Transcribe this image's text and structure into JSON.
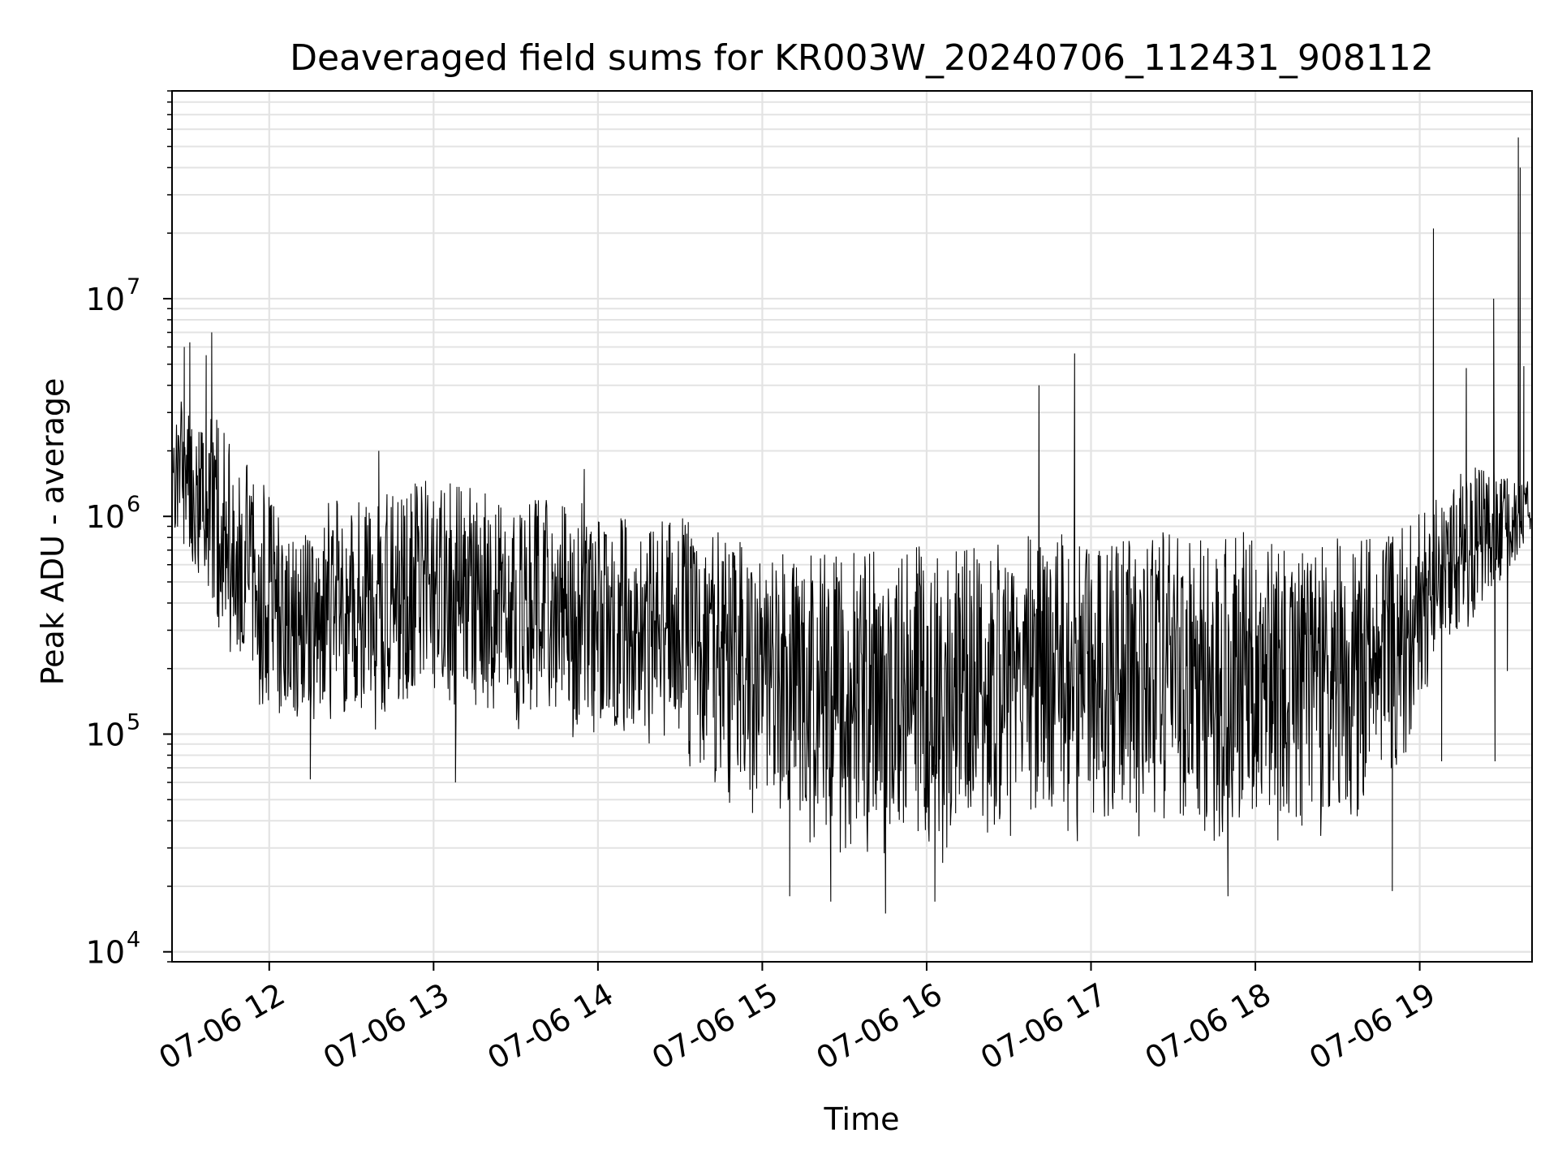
{
  "chart_data": {
    "type": "line",
    "title": "Deaveraged field sums for KR003W_20240706_112431_908112",
    "xlabel": "Time",
    "ylabel": "Peak ADU - average",
    "yscale": "log",
    "xlim": [
      "2024-07-06T11:24:31",
      "2024-07-06T19:41:00"
    ],
    "ylim": [
      9000,
      90000000
    ],
    "grid": true,
    "grid_minor": true,
    "x_ticks": [
      {
        "t": "2024-07-06T12:00:00",
        "label": "07-06 12"
      },
      {
        "t": "2024-07-06T13:00:00",
        "label": "07-06 13"
      },
      {
        "t": "2024-07-06T14:00:00",
        "label": "07-06 14"
      },
      {
        "t": "2024-07-06T15:00:00",
        "label": "07-06 15"
      },
      {
        "t": "2024-07-06T16:00:00",
        "label": "07-06 16"
      },
      {
        "t": "2024-07-06T17:00:00",
        "label": "07-06 17"
      },
      {
        "t": "2024-07-06T18:00:00",
        "label": "07-06 18"
      },
      {
        "t": "2024-07-06T19:00:00",
        "label": "07-06 19"
      }
    ],
    "y_ticks": [
      {
        "v": 10000,
        "base": "10",
        "exp": "4"
      },
      {
        "v": 100000,
        "base": "10",
        "exp": "5"
      },
      {
        "v": 1000000,
        "base": "10",
        "exp": "6"
      },
      {
        "v": 10000000,
        "base": "10",
        "exp": "7"
      }
    ],
    "line_color": "#000000",
    "grid_color": "#e3e3e3",
    "envelope": [
      {
        "t": "2024-07-06T11:25:00",
        "lo": 800000,
        "hi": 4000000
      },
      {
        "t": "2024-07-06T11:40:00",
        "lo": 300000,
        "hi": 3000000
      },
      {
        "t": "2024-07-06T12:00:00",
        "lo": 100000,
        "hi": 1300000
      },
      {
        "t": "2024-07-06T12:30:00",
        "lo": 100000,
        "hi": 1200000
      },
      {
        "t": "2024-07-06T13:00:00",
        "lo": 110000,
        "hi": 1500000
      },
      {
        "t": "2024-07-06T13:30:00",
        "lo": 90000,
        "hi": 1200000
      },
      {
        "t": "2024-07-06T14:00:00",
        "lo": 90000,
        "hi": 1200000
      },
      {
        "t": "2024-07-06T14:30:00",
        "lo": 70000,
        "hi": 1000000
      },
      {
        "t": "2024-07-06T14:50:00",
        "lo": 45000,
        "hi": 800000
      },
      {
        "t": "2024-07-06T15:00:00",
        "lo": 35000,
        "hi": 700000
      },
      {
        "t": "2024-07-06T15:30:00",
        "lo": 25000,
        "hi": 700000
      },
      {
        "t": "2024-07-06T16:00:00",
        "lo": 25000,
        "hi": 750000
      },
      {
        "t": "2024-07-06T16:30:00",
        "lo": 27000,
        "hi": 800000
      },
      {
        "t": "2024-07-06T17:00:00",
        "lo": 30000,
        "hi": 850000
      },
      {
        "t": "2024-07-06T17:30:00",
        "lo": 30000,
        "hi": 850000
      },
      {
        "t": "2024-07-06T18:00:00",
        "lo": 28000,
        "hi": 850000
      },
      {
        "t": "2024-07-06T18:30:00",
        "lo": 30000,
        "hi": 800000
      },
      {
        "t": "2024-07-06T18:55:00",
        "lo": 60000,
        "hi": 900000
      },
      {
        "t": "2024-07-06T19:05:00",
        "lo": 200000,
        "hi": 1200000
      },
      {
        "t": "2024-07-06T19:20:00",
        "lo": 300000,
        "hi": 1800000
      },
      {
        "t": "2024-07-06T19:40:00",
        "lo": 700000,
        "hi": 1500000
      }
    ],
    "spikes": [
      {
        "t": "2024-07-06T11:29:00",
        "y": 6000000
      },
      {
        "t": "2024-07-06T11:31:00",
        "y": 6300000
      },
      {
        "t": "2024-07-06T11:37:00",
        "y": 5500000
      },
      {
        "t": "2024-07-06T11:39:00",
        "y": 7000000
      },
      {
        "t": "2024-07-06T12:15:00",
        "y": 62000
      },
      {
        "t": "2024-07-06T12:40:00",
        "y": 2000000
      },
      {
        "t": "2024-07-06T13:08:00",
        "y": 60000
      },
      {
        "t": "2024-07-06T13:55:00",
        "y": 1650000
      },
      {
        "t": "2024-07-06T15:10:00",
        "y": 18000
      },
      {
        "t": "2024-07-06T15:25:00",
        "y": 17000
      },
      {
        "t": "2024-07-06T15:45:00",
        "y": 15000
      },
      {
        "t": "2024-07-06T16:03:00",
        "y": 17000
      },
      {
        "t": "2024-07-06T16:41:00",
        "y": 4000000
      },
      {
        "t": "2024-07-06T16:54:00",
        "y": 5600000
      },
      {
        "t": "2024-07-06T17:50:00",
        "y": 18000
      },
      {
        "t": "2024-07-06T18:50:00",
        "y": 19000
      },
      {
        "t": "2024-07-06T19:05:00",
        "y": 21000000
      },
      {
        "t": "2024-07-06T19:08:00",
        "y": 75000
      },
      {
        "t": "2024-07-06T19:17:00",
        "y": 4800000
      },
      {
        "t": "2024-07-06T19:27:00",
        "y": 10000000
      },
      {
        "t": "2024-07-06T19:27:30",
        "y": 75000
      },
      {
        "t": "2024-07-06T19:32:00",
        "y": 195000
      },
      {
        "t": "2024-07-06T19:36:00",
        "y": 55000000
      },
      {
        "t": "2024-07-06T19:36:40",
        "y": 40000000
      },
      {
        "t": "2024-07-06T19:38:00",
        "y": 4900000
      }
    ]
  }
}
